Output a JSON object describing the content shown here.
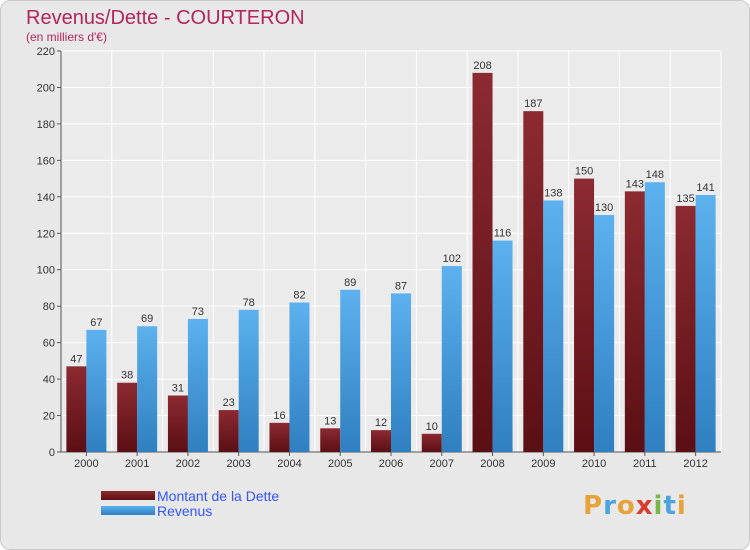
{
  "header": {
    "title": "Revenus/Dette - COURTERON",
    "subtitle": "(en milliers d'€)"
  },
  "legend": {
    "debt_label": "Montant de la Dette",
    "revenue_label": "Revenus"
  },
  "logo": {
    "letters": [
      "P",
      "r",
      "o",
      "x",
      "i",
      "t",
      "i"
    ],
    "letter_colors": [
      "#e8a23a",
      "#4aa3df",
      "#e8a23a",
      "#d93c2e",
      "#7ab648",
      "#4aa3df",
      "#e8a23a"
    ]
  },
  "colors": {
    "debt": "#7a1e25",
    "revenue": "#4da3e4",
    "title": "#b3265a",
    "legend_text": "#3355ff"
  },
  "chart_data": {
    "type": "bar",
    "title": "Revenus/Dette - COURTERON",
    "ylabel": "(en milliers d'€)",
    "xlabel": "",
    "ylim": [
      0,
      220
    ],
    "ytick_step": 20,
    "grid": true,
    "legend_position": "bottom-left",
    "categories": [
      "2000",
      "2001",
      "2002",
      "2003",
      "2004",
      "2005",
      "2006",
      "2007",
      "2008",
      "2009",
      "2010",
      "2011",
      "2012"
    ],
    "series": [
      {
        "name": "Montant de la Dette",
        "values": [
          47,
          38,
          31,
          23,
          16,
          13,
          12,
          10,
          208,
          187,
          150,
          143,
          135
        ]
      },
      {
        "name": "Revenus",
        "values": [
          67,
          69,
          73,
          78,
          82,
          89,
          87,
          102,
          116,
          138,
          130,
          148,
          141
        ]
      }
    ]
  }
}
